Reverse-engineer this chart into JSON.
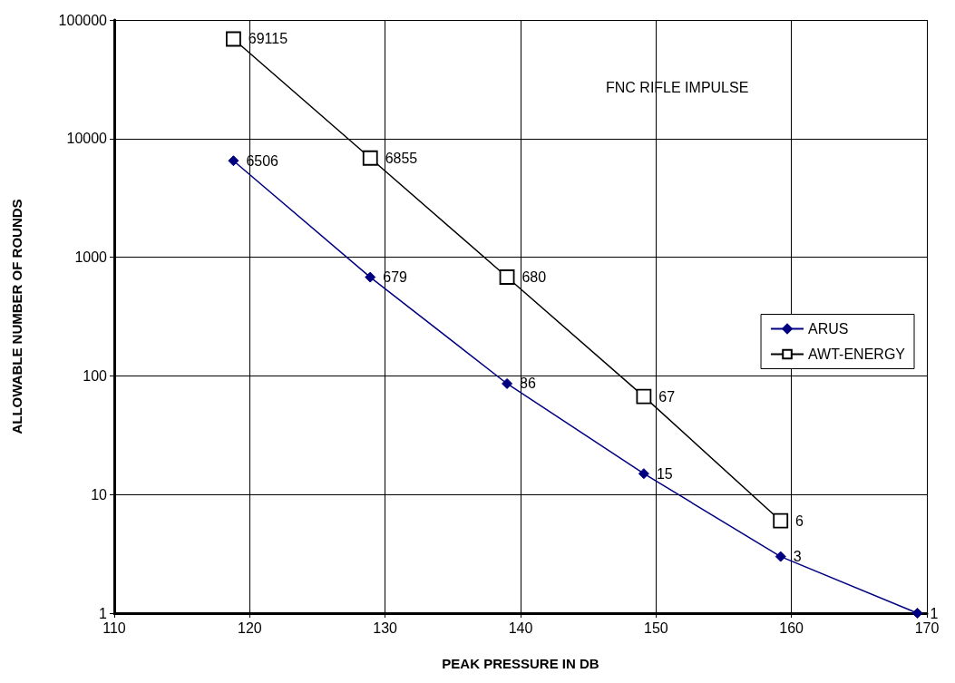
{
  "chart_data": {
    "type": "line",
    "xlabel": "PEAK PRESSURE IN DB",
    "ylabel": "ALLOWABLE NUMBER OF ROUNDS",
    "annotations": [
      "FNC RIFLE IMPULSE"
    ],
    "series": [
      {
        "name": "ARUS",
        "color": "#000080",
        "marker": "diamond",
        "x": [
          118.8,
          128.9,
          139.0,
          149.1,
          159.2,
          169.3
        ],
        "values": [
          6506,
          679,
          86,
          15,
          3,
          1
        ]
      },
      {
        "name": "AWT-ENERGY",
        "color": "#000000",
        "marker": "square",
        "x": [
          118.8,
          128.9,
          139.0,
          149.1,
          159.2
        ],
        "values": [
          69115,
          6855,
          680,
          67,
          6
        ]
      }
    ],
    "xlim": [
      110,
      170
    ],
    "xticks": [
      110,
      120,
      130,
      140,
      150,
      160,
      170
    ],
    "ylim": [
      1,
      100000
    ],
    "yticks": [
      1,
      10,
      100,
      1000,
      10000,
      100000
    ],
    "log": "y",
    "grid": true,
    "legend": "right",
    "data_labels": true,
    "line_style": "solid"
  }
}
